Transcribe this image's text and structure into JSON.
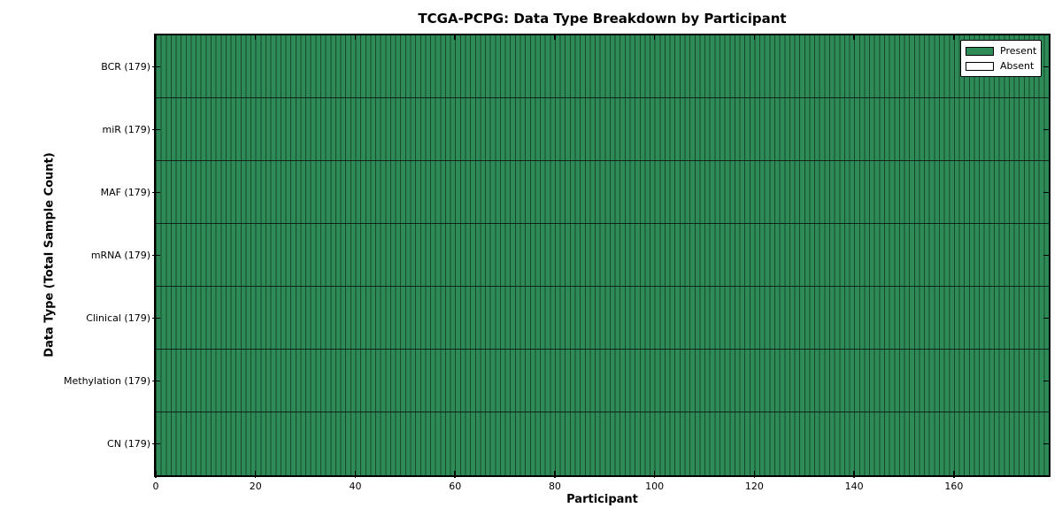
{
  "chart_data": {
    "type": "heatmap",
    "title": "TCGA-PCPG: Data Type Breakdown by Participant",
    "xlabel": "Participant",
    "ylabel": "Data Type (Total Sample Count)",
    "participants": 179,
    "xlim": [
      0,
      179
    ],
    "x_ticks": [
      0,
      20,
      40,
      60,
      80,
      100,
      120,
      140,
      160
    ],
    "rows": [
      {
        "data_type": "BCR",
        "label": "BCR (179)",
        "total_samples": 179,
        "present_count": 179,
        "absent_count": 0
      },
      {
        "data_type": "miR",
        "label": "miR (179)",
        "total_samples": 179,
        "present_count": 179,
        "absent_count": 0
      },
      {
        "data_type": "MAF",
        "label": "MAF (179)",
        "total_samples": 179,
        "present_count": 179,
        "absent_count": 0
      },
      {
        "data_type": "mRNA",
        "label": "mRNA (179)",
        "total_samples": 179,
        "present_count": 179,
        "absent_count": 0
      },
      {
        "data_type": "Clinical",
        "label": "Clinical (179)",
        "total_samples": 179,
        "present_count": 179,
        "absent_count": 0
      },
      {
        "data_type": "Methylation",
        "label": "Methylation (179)",
        "total_samples": 179,
        "present_count": 179,
        "absent_count": 0
      },
      {
        "data_type": "CN",
        "label": "CN (179)",
        "total_samples": 179,
        "present_count": 179,
        "absent_count": 0
      }
    ],
    "legend": [
      {
        "label": "Present",
        "color": "#2e8b57"
      },
      {
        "label": "Absent",
        "color": "#ffffff"
      }
    ],
    "colors": {
      "present": "#2e8b57",
      "absent": "#ffffff",
      "cell_edge": "#17492d",
      "axis": "#000000"
    },
    "legend_position": "upper right",
    "grid": false
  }
}
